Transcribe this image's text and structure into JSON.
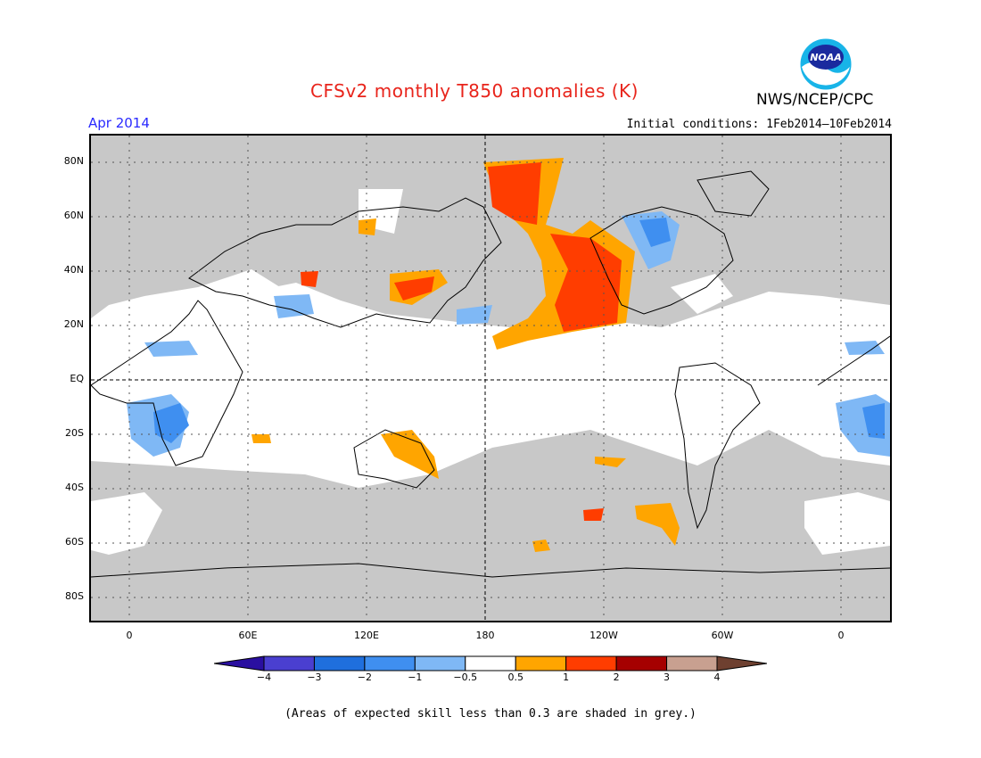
{
  "title": "CFSv2 monthly T850 anomalies (K)",
  "valid_month": "Apr 2014",
  "initial_conditions": "Initial conditions: 1Feb2014–10Feb2014",
  "organization": "NWS/NCEP/CPC",
  "logo_text": "NOAA",
  "lat_labels": [
    "80N",
    "60N",
    "40N",
    "20N",
    "EQ",
    "20S",
    "40S",
    "60S",
    "80S"
  ],
  "lon_labels": [
    "0",
    "60E",
    "120E",
    "180",
    "120W",
    "60W",
    "0"
  ],
  "colorbar": {
    "ticks": [
      "−4",
      "−3",
      "−2",
      "−1",
      "−0.5",
      "0.5",
      "1",
      "2",
      "3",
      "4"
    ],
    "colors": [
      "#2a0fa0",
      "#4a3fd0",
      "#1f6fdd",
      "#3f8ff0",
      "#7fb8f5",
      "#ffffff",
      "#ffa500",
      "#ff3d00",
      "#a50000",
      "#c8a090",
      "#6e4030"
    ]
  },
  "footnote": "(Areas of expected skill less than 0.3 are shaded in grey.)",
  "colors": {
    "title": "#e8241b",
    "date": "#2a2aff",
    "skill_grey": "#c8c8c8"
  }
}
